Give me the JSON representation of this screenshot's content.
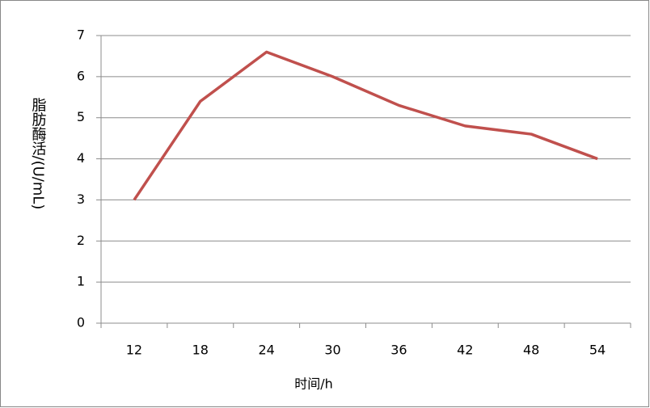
{
  "chart_data": {
    "type": "line",
    "x_label": "时间/h",
    "y_label": "脂肪酶活/(U/mL)",
    "categories": [
      "12",
      "18",
      "24",
      "30",
      "36",
      "42",
      "48",
      "54"
    ],
    "series": [
      {
        "color": "#c0504d",
        "values": [
          3,
          5.4,
          6.6,
          6.0,
          5.3,
          4.8,
          4.6,
          4.0
        ]
      }
    ],
    "ylim": [
      0,
      7
    ],
    "yticks": [
      0,
      1,
      2,
      3,
      4,
      5,
      6,
      7
    ],
    "grid": true
  }
}
